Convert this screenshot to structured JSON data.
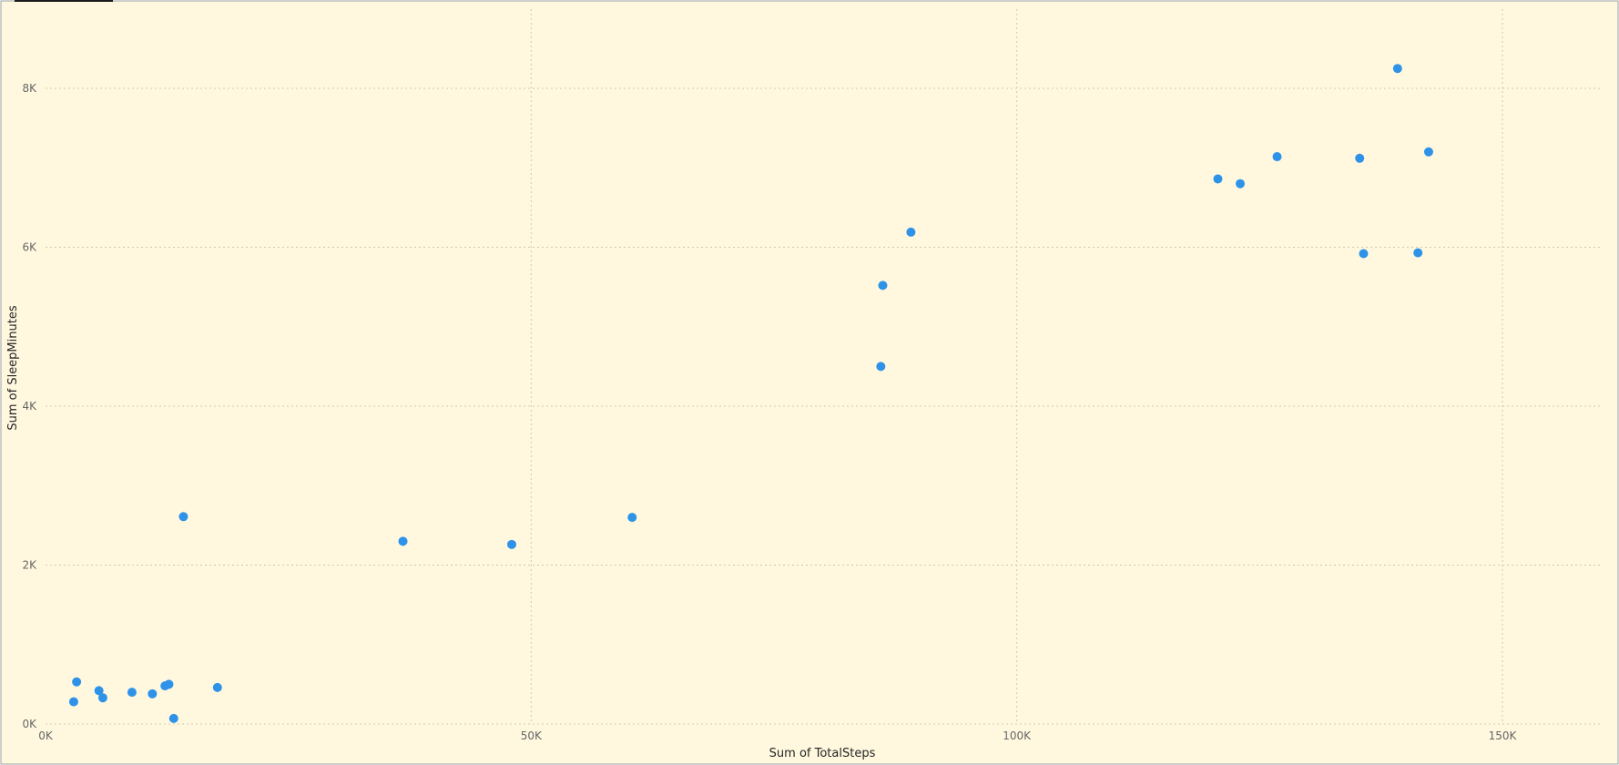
{
  "chart_data": {
    "type": "scatter",
    "title": "",
    "xlabel": "Sum of TotalSteps",
    "ylabel": "Sum of SleepMinutes",
    "xlim": [
      0,
      160000
    ],
    "ylim": [
      0,
      8800
    ],
    "x_ticks": [
      {
        "value": 0,
        "label": "0K"
      },
      {
        "value": 50000,
        "label": "50K"
      },
      {
        "value": 100000,
        "label": "100K"
      },
      {
        "value": 150000,
        "label": "150K"
      }
    ],
    "y_ticks": [
      {
        "value": 0,
        "label": "0K"
      },
      {
        "value": 2000,
        "label": "2K"
      },
      {
        "value": 4000,
        "label": "4K"
      },
      {
        "value": 6000,
        "label": "6K"
      },
      {
        "value": 8000,
        "label": "8K"
      }
    ],
    "grid": true,
    "legend": "none",
    "colors": {
      "background": "#fff8df",
      "point": "#2e93e8",
      "grid": "#cfcab0",
      "border": "#9aa0a6"
    },
    "points": [
      {
        "x": 2900,
        "y": 280
      },
      {
        "x": 3200,
        "y": 530
      },
      {
        "x": 5500,
        "y": 420
      },
      {
        "x": 5900,
        "y": 330
      },
      {
        "x": 8900,
        "y": 400
      },
      {
        "x": 11000,
        "y": 380
      },
      {
        "x": 12300,
        "y": 480
      },
      {
        "x": 12700,
        "y": 500
      },
      {
        "x": 13200,
        "y": 70
      },
      {
        "x": 14200,
        "y": 2610
      },
      {
        "x": 17700,
        "y": 460
      },
      {
        "x": 36800,
        "y": 2300
      },
      {
        "x": 48000,
        "y": 2260
      },
      {
        "x": 60400,
        "y": 2600
      },
      {
        "x": 86000,
        "y": 4500
      },
      {
        "x": 86200,
        "y": 5520
      },
      {
        "x": 89100,
        "y": 6190
      },
      {
        "x": 120700,
        "y": 6860
      },
      {
        "x": 123000,
        "y": 6800
      },
      {
        "x": 126800,
        "y": 7140
      },
      {
        "x": 135300,
        "y": 7120
      },
      {
        "x": 135700,
        "y": 5920
      },
      {
        "x": 139200,
        "y": 8250
      },
      {
        "x": 141300,
        "y": 5930
      },
      {
        "x": 142400,
        "y": 7200
      }
    ]
  }
}
